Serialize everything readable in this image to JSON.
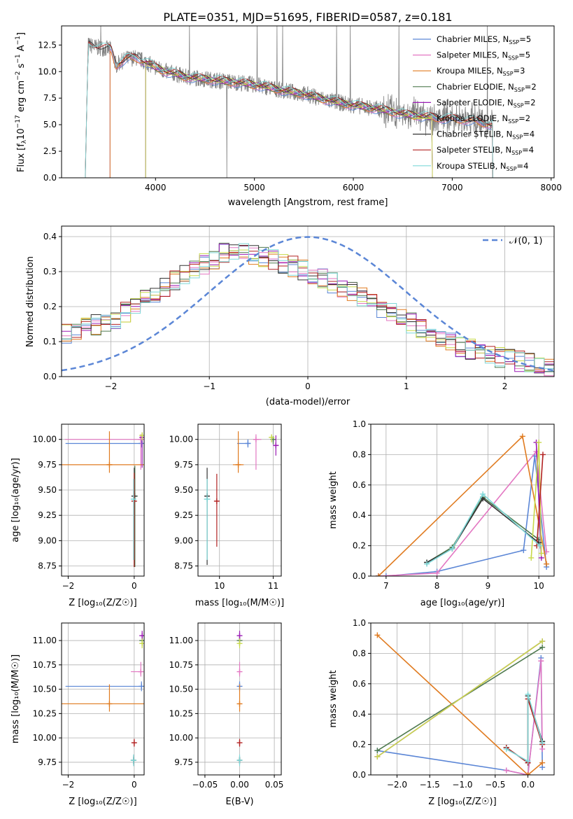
{
  "title": "PLATE=0351, MJD=51695, FIBERID=0587, z=0.181",
  "colors": {
    "Chabrier MILES": "#5b86d6",
    "Salpeter MILES": "#e377c2",
    "Kroupa MILES": "#e07b20",
    "Chabrier ELODIE": "#4f7a4f",
    "Salpeter ELODIE": "#9b1bb5",
    "Kroupa ELODIE": "#c8d94a",
    "Chabrier STELIB": "#333333",
    "Salpeter STELIB": "#b22222",
    "Kroupa STELIB": "#7fd8d8",
    "data": "#808080",
    "normal": "#5b86d6"
  },
  "legend": {
    "models": [
      "Chabrier MILES",
      "Salpeter MILES",
      "Kroupa MILES",
      "Chabrier ELODIE",
      "Salpeter ELODIE",
      "Kroupa ELODIE",
      "Chabrier STELIB",
      "Salpeter STELIB",
      "Kroupa STELIB"
    ],
    "nssp": [
      "5",
      "5",
      "3",
      "2",
      "2",
      "2",
      "4",
      "4",
      "4"
    ],
    "normal_label": "𝒩(0, 1)"
  },
  "chart_data": [
    {
      "type": "line",
      "name": "spectrum",
      "xlabel": "wavelength [Angstrom, rest frame]",
      "ylabel": "Flux [f_λ 10^-17 erg cm^-2 s^-1 A^-1]",
      "xlim": [
        3050,
        8030
      ],
      "ylim": [
        0,
        14.3
      ],
      "xticks": [
        4000,
        5000,
        6000,
        7000,
        8000
      ],
      "yticks": [
        0.0,
        2.5,
        5.0,
        7.5,
        10.0,
        12.5
      ],
      "grid": false,
      "legend_position": "top-right",
      "data_range": [
        3290,
        7410
      ],
      "model_coverage": {
        "MILES": [
          3540,
          7410
        ],
        "ELODIE": [
          3900,
          6800
        ],
        "STELIB": [
          3290,
          7410
        ]
      },
      "data_profile_x": [
        3290,
        3320,
        3400,
        3550,
        3600,
        3700,
        3800,
        3900,
        4000,
        4100,
        4200,
        4300,
        4500,
        4700,
        4900,
        5100,
        5300,
        5500,
        5700,
        5900,
        6100,
        6300,
        6500,
        6700,
        6900,
        7100,
        7300,
        7410
      ],
      "data_profile_y": [
        0.0,
        12.5,
        12.3,
        12.1,
        10.6,
        11.2,
        11.3,
        10.9,
        10.4,
        10.0,
        9.8,
        9.5,
        9.3,
        9.1,
        8.9,
        8.6,
        8.2,
        7.9,
        7.4,
        7.0,
        6.7,
        6.4,
        6.0,
        5.8,
        5.6,
        5.5,
        5.2,
        5.0
      ]
    },
    {
      "type": "line",
      "name": "residual-histogram",
      "xlabel": "(data-model)/error",
      "ylabel": "Normed distribution",
      "xlim": [
        -2.5,
        2.5
      ],
      "ylim": [
        0,
        0.43
      ],
      "xticks": [
        -2,
        -1,
        0,
        1,
        2
      ],
      "yticks": [
        0.0,
        0.1,
        0.2,
        0.3,
        0.4
      ],
      "grid": true,
      "legend_position": "top-right",
      "normal": {
        "mean": 0,
        "sigma": 1
      },
      "hist_profile_x": [
        -2.5,
        -2.0,
        -1.8,
        -1.5,
        -1.2,
        -1.0,
        -0.8,
        -0.6,
        -0.3,
        0.0,
        0.3,
        0.6,
        1.0,
        1.5,
        2.0,
        2.5
      ],
      "hist_profile_y": [
        0.12,
        0.16,
        0.19,
        0.25,
        0.3,
        0.33,
        0.36,
        0.35,
        0.33,
        0.3,
        0.26,
        0.22,
        0.16,
        0.09,
        0.05,
        0.03
      ]
    },
    {
      "type": "scatter",
      "name": "age-vs-metallicity",
      "xlabel": "Z [log10(Z/Z☉)]",
      "ylabel": "age [log10(age/yr)]",
      "xlim": [
        -2.2,
        0.3
      ],
      "ylim": [
        8.65,
        10.15
      ],
      "xticks": [
        -2,
        0
      ],
      "yticks": [
        8.75,
        9.0,
        9.25,
        9.5,
        9.75,
        10.0
      ],
      "grid": true,
      "points": [
        {
          "model": "Chabrier MILES",
          "x": 0.22,
          "y": 9.96,
          "xerr": [
            2.3,
            0.05
          ],
          "yerr": [
            0.04,
            0.04
          ]
        },
        {
          "model": "Salpeter MILES",
          "x": 0.2,
          "y": 10.0,
          "xerr": [
            2.3,
            0.05
          ],
          "yerr": [
            0.3,
            0.05
          ]
        },
        {
          "model": "Kroupa MILES",
          "x": -0.75,
          "y": 9.75,
          "xerr": [
            1.5,
            1.1
          ],
          "yerr": [
            0.08,
            0.33
          ]
        },
        {
          "model": "Chabrier ELODIE",
          "x": 0.02,
          "y": 9.44,
          "xerr": [
            0.05,
            0.05
          ],
          "yerr": [
            0.7,
            0.3
          ]
        },
        {
          "model": "Salpeter ELODIE",
          "x": 0.24,
          "y": 10.02,
          "xerr": [
            0.04,
            0.04
          ],
          "yerr": [
            0.3,
            0.03
          ]
        },
        {
          "model": "Kroupa ELODIE",
          "x": 0.24,
          "y": 10.04,
          "xerr": [
            0.04,
            0.04
          ],
          "yerr": [
            0.05,
            0.03
          ]
        },
        {
          "model": "Chabrier STELIB",
          "x": 0.0,
          "y": 9.44,
          "xerr": [
            0.04,
            0.04
          ],
          "yerr": [
            0.7,
            0.28
          ]
        },
        {
          "model": "Salpeter STELIB",
          "x": 0.0,
          "y": 9.39,
          "xerr": [
            0.04,
            0.04
          ],
          "yerr": [
            0.65,
            0.28
          ]
        },
        {
          "model": "Kroupa STELIB",
          "x": -0.02,
          "y": 9.41,
          "xerr": [
            0.05,
            0.05
          ],
          "yerr": [
            0.6,
            0.2
          ]
        }
      ]
    },
    {
      "type": "scatter",
      "name": "age-vs-mass",
      "xlabel": "mass [log10(M/M☉)]",
      "ylabel": "",
      "xlim": [
        9.6,
        11.15
      ],
      "ylim": [
        8.65,
        10.15
      ],
      "xticks": [
        10,
        11
      ],
      "yticks": [
        8.75,
        9.0,
        9.25,
        9.5,
        9.75,
        10.0
      ],
      "grid": true,
      "points": [
        {
          "model": "Chabrier MILES",
          "x": 10.53,
          "y": 9.96,
          "xerr": [
            0.2,
            0.05
          ],
          "yerr": [
            0.04,
            0.04
          ]
        },
        {
          "model": "Salpeter MILES",
          "x": 10.68,
          "y": 10.0,
          "xerr": [
            0.05,
            0.1
          ],
          "yerr": [
            0.3,
            0.05
          ]
        },
        {
          "model": "Kroupa MILES",
          "x": 10.35,
          "y": 9.75,
          "xerr": [
            0.1,
            0.1
          ],
          "yerr": [
            0.08,
            0.33
          ]
        },
        {
          "model": "Chabrier ELODIE",
          "x": 11.0,
          "y": 10.0,
          "xerr": [
            0.04,
            0.04
          ],
          "yerr": [
            0.05,
            0.03
          ]
        },
        {
          "model": "Salpeter ELODIE",
          "x": 11.05,
          "y": 9.94,
          "xerr": [
            0.05,
            0.05
          ],
          "yerr": [
            0.1,
            0.1
          ]
        },
        {
          "model": "Kroupa ELODIE",
          "x": 10.97,
          "y": 10.02,
          "xerr": [
            0.04,
            0.04
          ],
          "yerr": [
            0.05,
            0.03
          ]
        },
        {
          "model": "Chabrier STELIB",
          "x": 9.77,
          "y": 9.44,
          "xerr": [
            0.04,
            0.04
          ],
          "yerr": [
            0.68,
            0.28
          ]
        },
        {
          "model": "Salpeter STELIB",
          "x": 9.95,
          "y": 9.39,
          "xerr": [
            0.04,
            0.04
          ],
          "yerr": [
            0.45,
            0.27
          ]
        },
        {
          "model": "Kroupa STELIB",
          "x": 9.77,
          "y": 9.41,
          "xerr": [
            0.06,
            0.06
          ],
          "yerr": [
            0.6,
            0.2
          ]
        }
      ]
    },
    {
      "type": "line",
      "name": "mass-weight-vs-age",
      "xlabel": "age [log10(age/yr)]",
      "ylabel": "mass weight",
      "xlim": [
        6.7,
        10.3
      ],
      "ylim": [
        0,
        1
      ],
      "xticks": [
        7,
        8,
        9,
        10
      ],
      "yticks": [
        0.0,
        0.2,
        0.4,
        0.6,
        0.8,
        1.0
      ],
      "grid": true,
      "series": [
        {
          "model": "Chabrier MILES",
          "x": [
            6.85,
            7.0,
            8.0,
            9.7,
            9.92,
            10.15
          ],
          "y": [
            0.0,
            0.0,
            0.03,
            0.17,
            0.79,
            0.06
          ]
        },
        {
          "model": "Salpeter MILES",
          "x": [
            6.85,
            8.0,
            9.95,
            10.15
          ],
          "y": [
            0.0,
            0.02,
            0.82,
            0.16
          ]
        },
        {
          "model": "Kroupa MILES",
          "x": [
            6.85,
            9.68,
            10.15
          ],
          "y": [
            0.0,
            0.92,
            0.08
          ]
        },
        {
          "model": "Chabrier ELODIE",
          "x": [
            7.8,
            8.3,
            8.9,
            10.0
          ],
          "y": [
            0.09,
            0.19,
            0.52,
            0.24
          ]
        },
        {
          "model": "Salpeter ELODIE",
          "x": [
            9.95,
            10.05
          ],
          "y": [
            0.88,
            0.12
          ]
        },
        {
          "model": "Kroupa ELODIE",
          "x": [
            9.85,
            10.0,
            10.05
          ],
          "y": [
            0.12,
            0.88,
            0.15
          ]
        },
        {
          "model": "Chabrier STELIB",
          "x": [
            7.8,
            8.3,
            8.9,
            10.0
          ],
          "y": [
            0.09,
            0.18,
            0.51,
            0.22
          ]
        },
        {
          "model": "Salpeter STELIB",
          "x": [
            9.96,
            10.08
          ],
          "y": [
            0.2,
            0.8
          ]
        },
        {
          "model": "Kroupa STELIB",
          "x": [
            7.8,
            8.3,
            8.9,
            10.02
          ],
          "y": [
            0.08,
            0.18,
            0.54,
            0.2
          ]
        }
      ]
    },
    {
      "type": "scatter",
      "name": "mass-vs-metallicity",
      "xlabel": "Z [log10(Z/Z☉)]",
      "ylabel": "mass [log10(M/M☉)]",
      "xlim": [
        -2.2,
        0.3
      ],
      "ylim": [
        9.62,
        11.18
      ],
      "xticks": [
        -2,
        0
      ],
      "yticks": [
        9.75,
        10.0,
        10.25,
        10.5,
        10.75,
        11.0
      ],
      "grid": true,
      "points": [
        {
          "model": "Chabrier MILES",
          "x": 0.22,
          "y": 10.53,
          "xerr": [
            2.3,
            0.05
          ],
          "yerr": [
            0.05,
            0.05
          ]
        },
        {
          "model": "Salpeter MILES",
          "x": 0.2,
          "y": 10.68,
          "xerr": [
            0.3,
            0.05
          ],
          "yerr": [
            0.05,
            0.1
          ]
        },
        {
          "model": "Kroupa MILES",
          "x": -0.75,
          "y": 10.35,
          "xerr": [
            1.5,
            1.1
          ],
          "yerr": [
            0.08,
            0.2
          ]
        },
        {
          "model": "Chabrier ELODIE",
          "x": 0.24,
          "y": 11.0,
          "xerr": [
            0.04,
            0.04
          ],
          "yerr": [
            0.05,
            0.05
          ]
        },
        {
          "model": "Salpeter ELODIE",
          "x": 0.24,
          "y": 11.05,
          "xerr": [
            0.04,
            0.04
          ],
          "yerr": [
            0.05,
            0.05
          ]
        },
        {
          "model": "Kroupa ELODIE",
          "x": 0.24,
          "y": 10.97,
          "xerr": [
            0.04,
            0.04
          ],
          "yerr": [
            0.05,
            0.05
          ]
        },
        {
          "model": "Chabrier STELIB",
          "x": -0.02,
          "y": 9.77,
          "xerr": [
            0.06,
            0.06
          ],
          "yerr": [
            0.04,
            0.04
          ]
        },
        {
          "model": "Salpeter STELIB",
          "x": 0.0,
          "y": 9.95,
          "xerr": [
            0.06,
            0.06
          ],
          "yerr": [
            0.04,
            0.04
          ]
        },
        {
          "model": "Kroupa STELIB",
          "x": -0.02,
          "y": 9.77,
          "xerr": [
            0.08,
            0.08
          ],
          "yerr": [
            0.06,
            0.06
          ]
        }
      ]
    },
    {
      "type": "scatter",
      "name": "mass-vs-extinction",
      "xlabel": "E(B-V)",
      "ylabel": "",
      "xlim": [
        -0.06,
        0.06
      ],
      "ylim": [
        9.62,
        11.18
      ],
      "xticks": [
        -0.05,
        0.0,
        0.05
      ],
      "yticks": [
        9.75,
        10.0,
        10.25,
        10.5,
        10.75,
        11.0
      ],
      "grid": true,
      "points": [
        {
          "model": "Chabrier MILES",
          "x": 0.0,
          "y": 10.53,
          "xerr": [
            0,
            0
          ],
          "yerr": [
            0.05,
            0.05
          ]
        },
        {
          "model": "Salpeter MILES",
          "x": 0.0,
          "y": 10.68,
          "xerr": [
            0,
            0
          ],
          "yerr": [
            0.05,
            0.1
          ]
        },
        {
          "model": "Kroupa MILES",
          "x": 0.0,
          "y": 10.35,
          "xerr": [
            0,
            0
          ],
          "yerr": [
            0.08,
            0.2
          ]
        },
        {
          "model": "Chabrier ELODIE",
          "x": 0.0,
          "y": 11.0,
          "xerr": [
            0,
            0
          ],
          "yerr": [
            0.05,
            0.05
          ]
        },
        {
          "model": "Salpeter ELODIE",
          "x": 0.0,
          "y": 11.05,
          "xerr": [
            0,
            0
          ],
          "yerr": [
            0.05,
            0.05
          ]
        },
        {
          "model": "Kroupa ELODIE",
          "x": 0.0,
          "y": 10.97,
          "xerr": [
            0,
            0
          ],
          "yerr": [
            0.05,
            0.05
          ]
        },
        {
          "model": "Chabrier STELIB",
          "x": 0.0,
          "y": 9.77,
          "xerr": [
            0,
            0
          ],
          "yerr": [
            0.04,
            0.04
          ]
        },
        {
          "model": "Salpeter STELIB",
          "x": 0.0,
          "y": 9.95,
          "xerr": [
            0,
            0
          ],
          "yerr": [
            0.04,
            0.04
          ]
        },
        {
          "model": "Kroupa STELIB",
          "x": 0.0,
          "y": 9.77,
          "xerr": [
            0,
            0
          ],
          "yerr": [
            0.06,
            0.06
          ]
        }
      ]
    },
    {
      "type": "line",
      "name": "mass-weight-vs-metallicity",
      "xlabel": "Z [log10(Z/Z☉)]",
      "ylabel": "mass weight",
      "xlim": [
        -2.4,
        0.4
      ],
      "ylim": [
        0,
        1
      ],
      "xticks": [
        -2.0,
        -1.5,
        -1.0,
        -0.5,
        0.0
      ],
      "yticks": [
        0.0,
        0.2,
        0.4,
        0.6,
        0.8,
        1.0
      ],
      "grid": true,
      "series": [
        {
          "model": "Chabrier MILES",
          "x": [
            -2.3,
            -0.33,
            0.0,
            0.2,
            0.22
          ],
          "y": [
            0.16,
            0.03,
            0.0,
            0.77,
            0.05
          ]
        },
        {
          "model": "Salpeter MILES",
          "x": [
            -0.33,
            0.0,
            0.2,
            0.22
          ],
          "y": [
            0.03,
            0.0,
            0.75,
            0.17
          ]
        },
        {
          "model": "Kroupa MILES",
          "x": [
            -2.3,
            0.0,
            0.22
          ],
          "y": [
            0.92,
            0.0,
            0.08
          ]
        },
        {
          "model": "Chabrier ELODIE",
          "x": [
            -2.3,
            0.22
          ],
          "y": [
            0.16,
            0.84
          ]
        },
        {
          "model": "Salpeter ELODIE",
          "x": [
            -2.3,
            0.22
          ],
          "y": [
            0.12,
            0.88
          ]
        },
        {
          "model": "Kroupa ELODIE",
          "x": [
            -2.3,
            0.22
          ],
          "y": [
            0.12,
            0.88
          ]
        },
        {
          "model": "Chabrier STELIB",
          "x": [
            -0.33,
            0.0,
            0.0,
            0.22
          ],
          "y": [
            0.18,
            0.08,
            0.52,
            0.22
          ]
        },
        {
          "model": "Salpeter STELIB",
          "x": [
            -0.33,
            0.0,
            0.0,
            0.22
          ],
          "y": [
            0.18,
            0.08,
            0.5,
            0.2
          ]
        },
        {
          "model": "Kroupa STELIB",
          "x": [
            -0.33,
            0.0,
            0.0,
            0.22
          ],
          "y": [
            0.17,
            0.09,
            0.53,
            0.21
          ]
        }
      ]
    }
  ]
}
